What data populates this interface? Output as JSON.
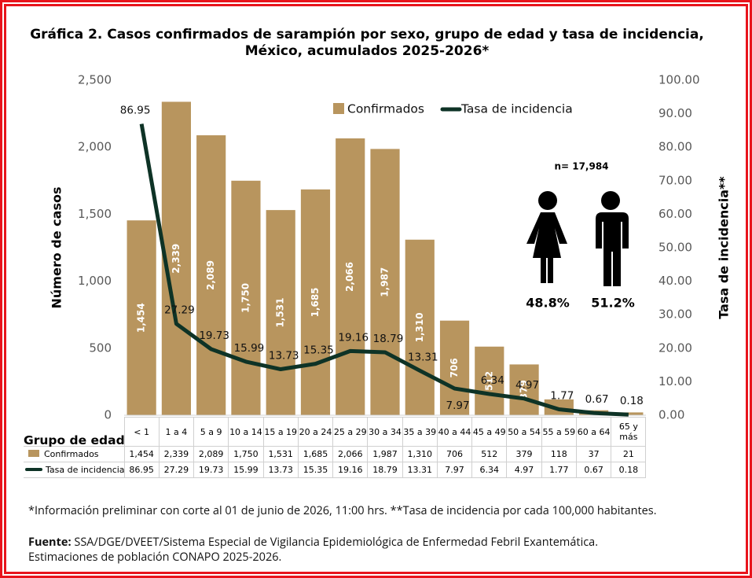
{
  "chart_data": {
    "type": "bar_line",
    "title": "Gráfica 2. Casos confirmados  de sarampión por sexo, grupo de edad y tasa de incidencia,",
    "subtitle": "México, acumulados 2025-2026*",
    "y_label": "Número de casos",
    "y2_label": "Tasa de incidencia**",
    "x_label": "Grupo de edad",
    "categories": [
      "< 1",
      "1 a 4",
      "5 a 9",
      "10 a 14",
      "15 a 19",
      "20 a 24",
      "25 a 29",
      "30 a 34",
      "35 a 39",
      "40 a 44",
      "45 a 49",
      "50 a 54",
      "55 a 59",
      "60 a 64",
      "65 y más"
    ],
    "series": [
      {
        "name": "Confirmados",
        "color": "#b8955e",
        "kind": "bar",
        "values": [
          1454,
          2339,
          2089,
          1750,
          1531,
          1685,
          2066,
          1987,
          1310,
          706,
          512,
          379,
          118,
          37,
          21
        ],
        "value_labels": [
          "1,454",
          "2,339",
          "2,089",
          "1,750",
          "1,531",
          "1,685",
          "2,066",
          "1,987",
          "1,310",
          "706",
          "512",
          "379",
          "118",
          "37",
          "21"
        ]
      },
      {
        "name": "Tasa de incidencia",
        "color": "#0e3326",
        "kind": "line",
        "axis": "y2",
        "values": [
          86.95,
          27.29,
          19.73,
          15.99,
          13.73,
          15.35,
          19.16,
          18.79,
          13.31,
          7.97,
          6.34,
          4.97,
          1.77,
          0.67,
          0.18
        ]
      }
    ],
    "ylim": [
      0,
      2500
    ],
    "yticks": [
      0,
      500,
      {
        "value": 1000,
        "label": "1,000"
      },
      {
        "value": 1500,
        "label": "1,500"
      },
      {
        "value": 2000,
        "label": "2,000"
      },
      {
        "value": 2500,
        "label": "2,500"
      }
    ],
    "y2lim": [
      0,
      100
    ],
    "y2ticks": [
      {
        "value": 0,
        "label": "0.00"
      },
      {
        "value": 10,
        "label": "10.00"
      },
      {
        "value": 20,
        "label": "20.00"
      },
      {
        "value": 30,
        "label": "30.00"
      },
      {
        "value": 40,
        "label": "40.00"
      },
      {
        "value": 50,
        "label": "50.00"
      },
      {
        "value": 60,
        "label": "60.00"
      },
      {
        "value": 70,
        "label": "70.00"
      },
      {
        "value": 80,
        "label": "80.00"
      },
      {
        "value": 90,
        "label": "90.00"
      },
      {
        "value": 100,
        "label": "100.00"
      }
    ],
    "legend": "top",
    "annotations": {
      "n": "n= 17,984",
      "female": "48.8%",
      "male": "51.2%"
    },
    "footnote": "*Información preliminar con corte al 01 de junio de 2026, 11:00 hrs. **Tasa de incidencia por cada 100,000 habitantes.",
    "source_label": "Fuente:",
    "source": "SSA/DGE/DVEET/Sistema Especial de Vigilancia Epidemiológica de Enfermedad Febril Exantemática.",
    "source_note": "Estimaciones de población CONAPO 2025-2026."
  }
}
